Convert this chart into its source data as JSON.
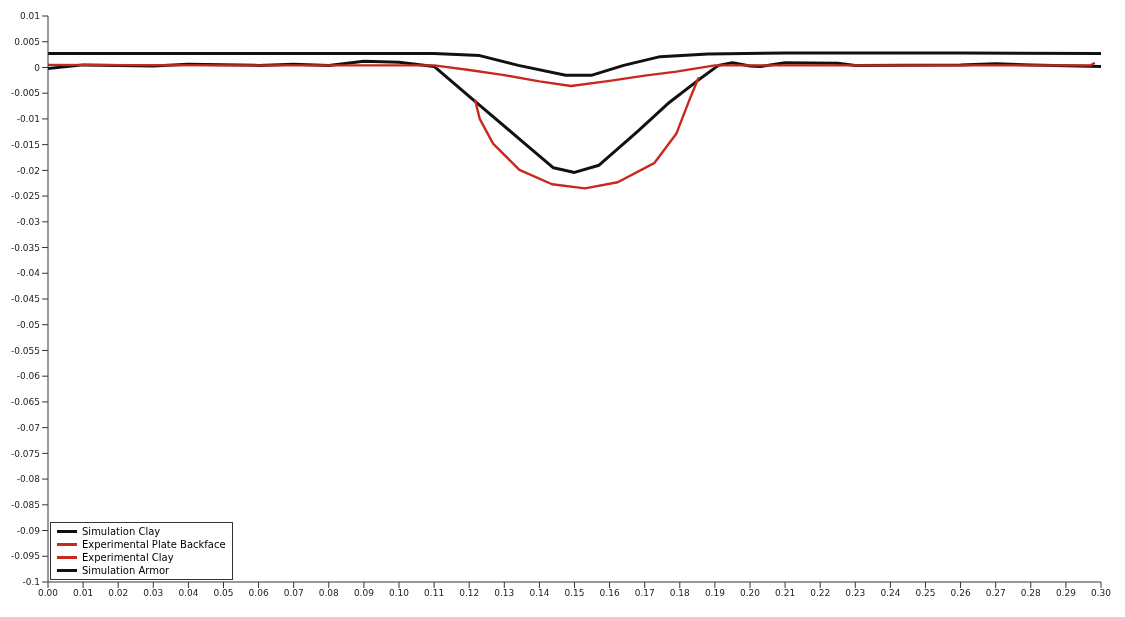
{
  "chart_data": {
    "type": "line",
    "legend": "bottom left",
    "grid": false,
    "marker": "none",
    "line_style": "solid",
    "xlim": [
      0,
      0.3
    ],
    "ylim": [
      -0.1,
      0.01
    ],
    "xticks": [
      {
        "value": 0,
        "label": "0.00"
      },
      {
        "value": 0.01,
        "label": "0.01"
      },
      {
        "value": 0.02,
        "label": "0.02"
      },
      {
        "value": 0.03,
        "label": "0.03"
      },
      {
        "value": 0.04,
        "label": "0.04"
      },
      {
        "value": 0.05,
        "label": "0.05"
      },
      {
        "value": 0.06,
        "label": "0.06"
      },
      {
        "value": 0.07,
        "label": "0.07"
      },
      {
        "value": 0.08,
        "label": "0.08"
      },
      {
        "value": 0.09,
        "label": "0.09"
      },
      {
        "value": 0.1,
        "label": "0.10"
      },
      {
        "value": 0.11,
        "label": "0.11"
      },
      {
        "value": 0.12,
        "label": "0.12"
      },
      {
        "value": 0.13,
        "label": "0.13"
      },
      {
        "value": 0.14,
        "label": "0.14"
      },
      {
        "value": 0.15,
        "label": "0.15"
      },
      {
        "value": 0.16,
        "label": "0.16"
      },
      {
        "value": 0.17,
        "label": "0.17"
      },
      {
        "value": 0.18,
        "label": "0.18"
      },
      {
        "value": 0.19,
        "label": "0.19"
      },
      {
        "value": 0.2,
        "label": "0.20"
      },
      {
        "value": 0.21,
        "label": "0.21"
      },
      {
        "value": 0.22,
        "label": "0.22"
      },
      {
        "value": 0.23,
        "label": "0.23"
      },
      {
        "value": 0.24,
        "label": "0.24"
      },
      {
        "value": 0.25,
        "label": "0.25"
      },
      {
        "value": 0.26,
        "label": "0.26"
      },
      {
        "value": 0.27,
        "label": "0.27"
      },
      {
        "value": 0.28,
        "label": "0.28"
      },
      {
        "value": 0.29,
        "label": "0.29"
      },
      {
        "value": 0.3,
        "label": "0.30"
      }
    ],
    "yticks": [
      0.01,
      0.005,
      0,
      -0.005,
      -0.01,
      -0.015,
      -0.02,
      -0.025,
      -0.03,
      -0.035,
      -0.04,
      -0.045,
      -0.05,
      -0.055,
      -0.06,
      -0.065,
      -0.07,
      -0.075,
      -0.08,
      -0.085,
      -0.09,
      -0.095,
      -0.1
    ],
    "series": [
      {
        "name": "Simulation Clay",
        "color": "#111111",
        "x": [
          0,
          0.01,
          0.03,
          0.04,
          0.06,
          0.07,
          0.08,
          0.09,
          0.1,
          0.11,
          0.121,
          0.135,
          0.144,
          0.15,
          0.157,
          0.168,
          0.177,
          0.185,
          0.191,
          0.195,
          0.2,
          0.203,
          0.21,
          0.225,
          0.23,
          0.26,
          0.27,
          0.28,
          0.3
        ],
        "values": [
          -0.0002,
          0.0005,
          0.0003,
          0.0006,
          0.0004,
          0.0006,
          0.0004,
          0.0012,
          0.001,
          0.0002,
          -0.0062,
          -0.0143,
          -0.0195,
          -0.0204,
          -0.019,
          -0.0124,
          -0.0068,
          -0.0026,
          0.0004,
          0.0009,
          0.0003,
          0.0002,
          0.0009,
          0.0008,
          0.0004,
          0.0005,
          0.0007,
          0.0005,
          0.0002
        ]
      },
      {
        "name": "Experimental Plate Backface",
        "color": "#c8281e",
        "x": [
          0,
          0.05,
          0.1,
          0.11,
          0.12,
          0.13,
          0.14,
          0.149,
          0.16,
          0.17,
          0.179,
          0.19,
          0.25,
          0.297,
          0.298
        ],
        "values": [
          0.0005,
          0.0004,
          0.0004,
          0.0004,
          -0.0005,
          -0.0015,
          -0.0027,
          -0.0036,
          -0.0026,
          -0.0016,
          -0.0008,
          0.0004,
          0.0004,
          0.0004,
          0.0008
        ]
      },
      {
        "name": "Experimental Clay",
        "color": "#c8281e",
        "x": [
          0.1217,
          0.123,
          0.1268,
          0.1343,
          0.1436,
          0.153,
          0.1623,
          0.1727,
          0.179,
          0.1828,
          0.1853
        ],
        "values": [
          -0.0064,
          -0.01,
          -0.0148,
          -0.0199,
          -0.0227,
          -0.0235,
          -0.0223,
          -0.0186,
          -0.0129,
          -0.0062,
          -0.0021
        ]
      },
      {
        "name": "Simulation Armor",
        "color": "#111111",
        "x": [
          0,
          0.05,
          0.1,
          0.11,
          0.123,
          0.134,
          0.1475,
          0.155,
          0.164,
          0.1744,
          0.188,
          0.21,
          0.26,
          0.3
        ],
        "values": [
          0.0027,
          0.0027,
          0.0027,
          0.0027,
          0.0023,
          0.0004,
          -0.0015,
          -0.0015,
          0.0004,
          0.0021,
          0.0026,
          0.0028,
          0.0028,
          0.0027
        ]
      }
    ]
  }
}
